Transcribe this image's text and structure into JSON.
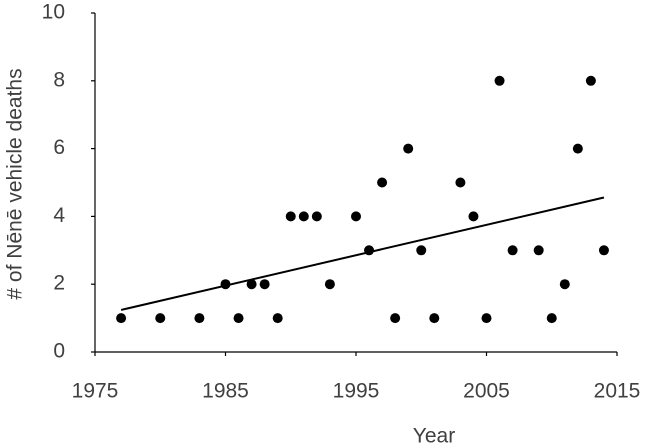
{
  "chart_data": {
    "type": "scatter",
    "xlabel": "Year",
    "ylabel": "# of Nēnē vehicle deaths",
    "x": [
      1977,
      1980,
      1983,
      1985,
      1986,
      1987,
      1988,
      1989,
      1990,
      1991,
      1992,
      1993,
      1995,
      1996,
      1997,
      1998,
      1999,
      2000,
      2001,
      2003,
      2004,
      2005,
      2006,
      2007,
      2009,
      2010,
      2011,
      2012,
      2013,
      2014
    ],
    "values": [
      1,
      1,
      1,
      2,
      1,
      2,
      2,
      1,
      4,
      4,
      4,
      2,
      4,
      3,
      5,
      1,
      6,
      3,
      1,
      5,
      4,
      1,
      8,
      3,
      3,
      1,
      2,
      6,
      8,
      3
    ],
    "color": "#000000",
    "xlim": [
      1975,
      2015
    ],
    "xticks": [
      1975,
      1985,
      1995,
      2005,
      2015
    ],
    "ylim": [
      0,
      10
    ],
    "yticks": [
      0,
      2,
      4,
      6,
      8,
      10
    ],
    "grid": false,
    "trendline": true
  }
}
